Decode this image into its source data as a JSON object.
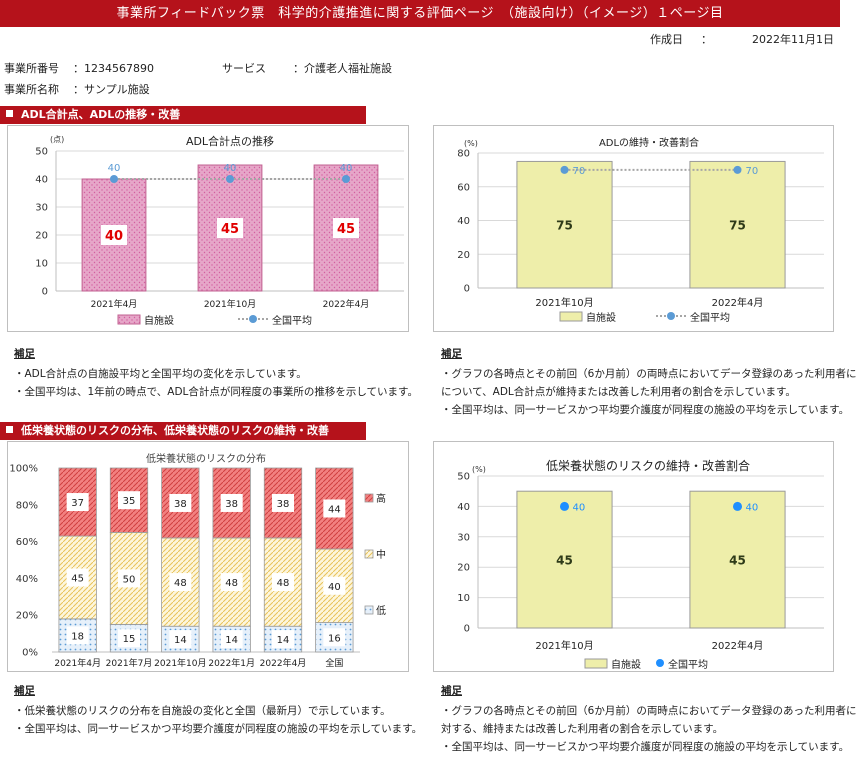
{
  "header": {
    "title": "事業所フィードバック票　科学的介護推進に関する評価ページ　（施設向け）（イメージ）１ページ目",
    "date_label": "作成日",
    "date_sep": "：",
    "date_value": "2022年11月1日"
  },
  "facility": {
    "id_label": "事業所番号",
    "id_value": "：1234567890",
    "name_label": "事業所名称",
    "name_value": "：サンプル施設",
    "service_label": "サービス",
    "service_value": "：介護老人福祉施設"
  },
  "sections": {
    "adl": "ADL合計点、ADLの推移・改善",
    "nutrition": "低栄養状態のリスクの分布、低栄養状態のリスクの維持・改善"
  },
  "notes": {
    "adl_left": {
      "heading": "補足",
      "lines": [
        "・ADL合計点の自施設平均と全国平均の変化を示しています。",
        "・全国平均は、1年前の時点で、ADL合計点が同程度の事業所の推移を示しています。"
      ]
    },
    "adl_right": {
      "heading": "補足",
      "lines": [
        "・グラフの各時点とその前回（6か月前）の両時点においてデータ登録のあった利用者に",
        "について、ADL合計点が維持または改善した利用者の割合を示しています。",
        "・全国平均は、同一サービスかつ平均要介護度が同程度の施設の平均を示しています。"
      ]
    },
    "nut_left": {
      "heading": "補足",
      "lines": [
        "・低栄養状態のリスクの分布を自施設の変化と全国（最新月）で示しています。",
        "・全国平均は、同一サービスかつ平均要介護度が同程度の施設の平均を示しています。"
      ]
    },
    "nut_right": {
      "heading": "補足",
      "lines": [
        "・グラフの各時点とその前回（6か月前）の両時点においてデータ登録のあった利用者に",
        "対する、維持または改善した利用者の割合を示しています。",
        "・全国平均は、同一サービスかつ平均要介護度が同程度の施設の平均を示しています。"
      ]
    }
  },
  "chart_data": [
    {
      "type": "bar",
      "title": "ADL合計点の推移",
      "ylabel": "(点)",
      "categories": [
        "2021年4月",
        "2021年10月",
        "2022年4月"
      ],
      "ylim": [
        0,
        50
      ],
      "yticks": [
        0,
        10,
        20,
        30,
        40,
        50
      ],
      "series": [
        {
          "name": "自施設",
          "type": "bar",
          "values": [
            40,
            45,
            45
          ],
          "color": "#e6a6c8"
        },
        {
          "name": "全国平均",
          "type": "line",
          "values": [
            40,
            40,
            40
          ],
          "color": "#5b9bd5"
        }
      ],
      "grid": true,
      "legend": "bottom"
    },
    {
      "type": "bar",
      "title": "ADLの維持・改善割合",
      "ylabel": "(%)",
      "categories": [
        "2021年10月",
        "2022年4月"
      ],
      "ylim": [
        0,
        80
      ],
      "yticks": [
        0,
        20,
        40,
        60,
        80
      ],
      "series": [
        {
          "name": "自施設",
          "type": "bar",
          "values": [
            75,
            75
          ],
          "color": "#eeeeaa"
        },
        {
          "name": "全国平均",
          "type": "line",
          "values": [
            70,
            70
          ],
          "color": "#5b9bd5"
        }
      ],
      "grid": true,
      "legend": "bottom"
    },
    {
      "type": "bar",
      "stacked": true,
      "title": "低栄養状態のリスクの分布",
      "categories": [
        "2021年4月",
        "2021年7月",
        "2021年10月",
        "2022年1月",
        "2022年4月",
        "全国"
      ],
      "ylim": [
        0,
        100
      ],
      "yticks": [
        "0%",
        "20%",
        "40%",
        "60%",
        "80%",
        "100%"
      ],
      "series": [
        {
          "name": "低",
          "values": [
            18,
            15,
            14,
            14,
            14,
            16
          ],
          "color": "#cfe3f5"
        },
        {
          "name": "中",
          "values": [
            45,
            50,
            48,
            48,
            48,
            40
          ],
          "color": "#fcefc4"
        },
        {
          "name": "高",
          "values": [
            37,
            35,
            38,
            38,
            38,
            44
          ],
          "color": "#f07070"
        }
      ],
      "legend": "right"
    },
    {
      "type": "bar",
      "title": "低栄養状態のリスクの維持・改善割合",
      "ylabel": "(%)",
      "categories": [
        "2021年10月",
        "2022年4月"
      ],
      "ylim": [
        0,
        50
      ],
      "yticks": [
        0,
        10,
        20,
        30,
        40,
        50
      ],
      "series": [
        {
          "name": "自施設",
          "type": "bar",
          "values": [
            45,
            45
          ],
          "color": "#eeeeaa"
        },
        {
          "name": "全国平均",
          "type": "point",
          "values": [
            40,
            40
          ],
          "color": "#1f8fff"
        }
      ],
      "grid": true,
      "legend": "bottom"
    }
  ]
}
